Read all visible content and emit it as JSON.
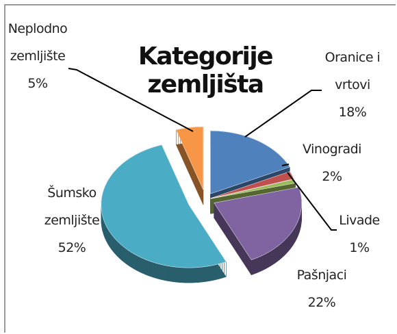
{
  "chart_data": {
    "type": "pie3d",
    "title": "Kategorije zemljišta",
    "categories": [
      "Oranice i vrtovi",
      "Vinogradi",
      "Livade",
      "Pašnjaci",
      "Šumsko zemljište",
      "Neplodno zemljište"
    ],
    "values": [
      18,
      2,
      1,
      22,
      52,
      5
    ],
    "value_labels": [
      "18%",
      "2%",
      "1%",
      "22%",
      "52%",
      "5%"
    ],
    "colors": [
      "#4f81bd",
      "#c0504d",
      "#9bbb59",
      "#8064a2",
      "#4bacc6",
      "#f79646"
    ]
  }
}
